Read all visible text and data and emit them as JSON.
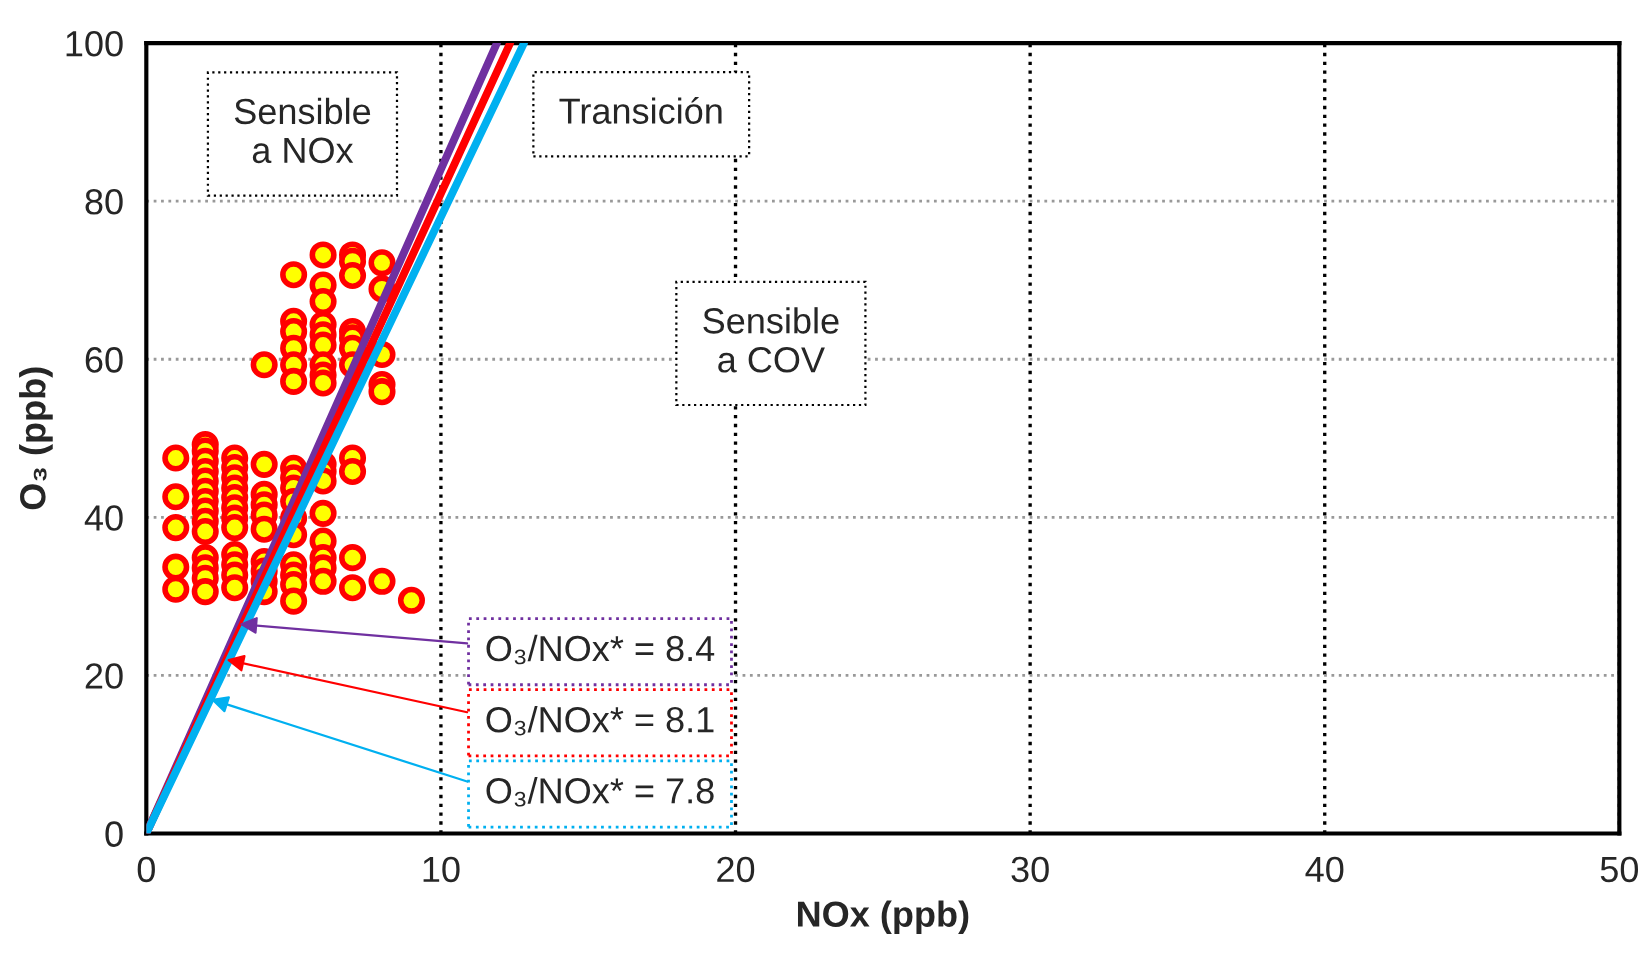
{
  "chart_data": {
    "type": "scatter",
    "xlabel": "NOx (ppb)",
    "ylabel": "O₃ (ppb)",
    "xlim": [
      0,
      50
    ],
    "ylim": [
      0,
      100
    ],
    "xticks": [
      0,
      10,
      20,
      30,
      40,
      50
    ],
    "yticks": [
      0,
      20,
      40,
      60,
      80,
      100
    ],
    "grid": true,
    "legend": false,
    "annotations": [
      "Sensible\na NOx",
      "Transición",
      "Sensible\na COV"
    ],
    "series": [
      {
        "marker": "circle",
        "color": "#ffff00",
        "x": [
          1,
          1,
          1,
          1,
          1,
          2,
          2,
          2,
          2,
          2,
          2,
          2,
          2,
          2,
          2,
          2,
          2,
          2,
          2,
          3,
          3,
          3,
          3,
          3,
          3,
          3,
          3,
          3,
          3,
          3,
          3,
          4,
          4,
          4,
          4,
          4,
          4,
          4,
          4,
          4,
          4,
          5,
          5,
          5,
          5,
          5,
          5,
          5,
          5,
          5,
          5,
          5,
          5,
          5,
          5,
          5,
          5,
          6,
          6,
          6,
          6,
          6,
          6,
          6,
          6,
          6,
          6,
          6,
          6,
          6,
          6,
          6,
          6,
          6,
          7,
          7,
          7,
          7,
          7,
          7,
          7,
          7,
          7,
          7,
          7,
          8,
          8,
          8,
          8,
          8,
          8,
          9
        ],
        "values": [
          47.5,
          42.6,
          38.7,
          33.7,
          30.9,
          49.2,
          48.4,
          47.1,
          45.8,
          44.6,
          43.3,
          42.0,
          40.8,
          39.5,
          38.2,
          34.9,
          33.6,
          32.3,
          30.6,
          47.5,
          46.3,
          45.0,
          43.7,
          42.5,
          41.2,
          39.9,
          38.7,
          35.3,
          34.0,
          32.7,
          31.1,
          59.3,
          46.7,
          42.9,
          41.6,
          40.3,
          38.5,
          34.4,
          33.2,
          31.9,
          30.6,
          70.7,
          64.8,
          63.5,
          61.4,
          59.3,
          57.2,
          46.2,
          45.0,
          43.7,
          42.0,
          39.9,
          37.8,
          34.0,
          32.7,
          31.5,
          29.4,
          73.2,
          69.4,
          67.3,
          64.4,
          63.1,
          61.8,
          59.3,
          58.0,
          57.0,
          46.7,
          45.8,
          44.6,
          40.5,
          37.0,
          34.9,
          33.6,
          31.9,
          73.2,
          72.4,
          70.6,
          63.5,
          62.7,
          61.4,
          59.3,
          47.5,
          45.8,
          34.9,
          31.1,
          72.2,
          68.9,
          60.6,
          56.8,
          55.9,
          31.9,
          29.5
        ]
      },
      {
        "type": "line",
        "name": "O₃/NOx* = 8.4",
        "color": "#7030a0",
        "x": [
          0,
          11.9
        ],
        "values": [
          0,
          100
        ]
      },
      {
        "type": "line",
        "name": "O₃/NOx* = 8.1",
        "color": "#ff0000",
        "x": [
          0,
          12.35
        ],
        "values": [
          0,
          100
        ]
      },
      {
        "type": "line",
        "name": "O₃/NOx* = 7.8",
        "color": "#00b0f0",
        "x": [
          0,
          12.82
        ],
        "values": [
          0,
          100
        ]
      }
    ]
  }
}
